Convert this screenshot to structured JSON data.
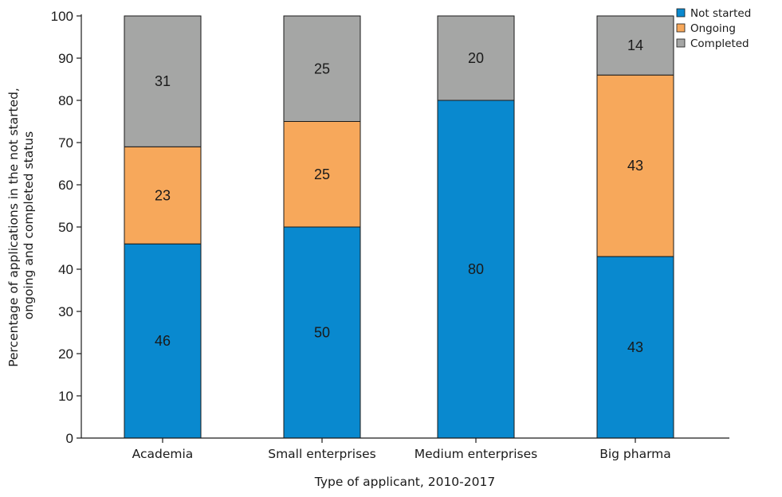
{
  "chart_data": {
    "type": "bar",
    "stacked": true,
    "categories": [
      "Academia",
      "Small enterprises",
      "Medium enterprises",
      "Big pharma"
    ],
    "series": [
      {
        "name": "Not started",
        "color": "#0989cf",
        "values": [
          46,
          50,
          80,
          43
        ],
        "labels": [
          "46",
          "50",
          "80",
          "43"
        ]
      },
      {
        "name": "Ongoing",
        "color": "#f7a85b",
        "values": [
          23,
          25,
          0,
          43
        ],
        "labels": [
          "23",
          "25",
          "",
          "43"
        ]
      },
      {
        "name": "Completed",
        "color": "#a5a6a5",
        "values": [
          31,
          25,
          20,
          14
        ],
        "labels": [
          "31",
          "25",
          "20",
          "14"
        ]
      }
    ],
    "ylim": [
      0,
      100
    ],
    "yticks": [
      "0",
      "10",
      "20",
      "30",
      "40",
      "50",
      "60",
      "70",
      "80",
      "90",
      "100"
    ],
    "xlabel": "Type of applicant, 2010-2017",
    "ylabel_lines": [
      "Percentage of applications in the not started,",
      "ongoing and completed status"
    ],
    "legend_position": "top-right",
    "grid": false
  }
}
